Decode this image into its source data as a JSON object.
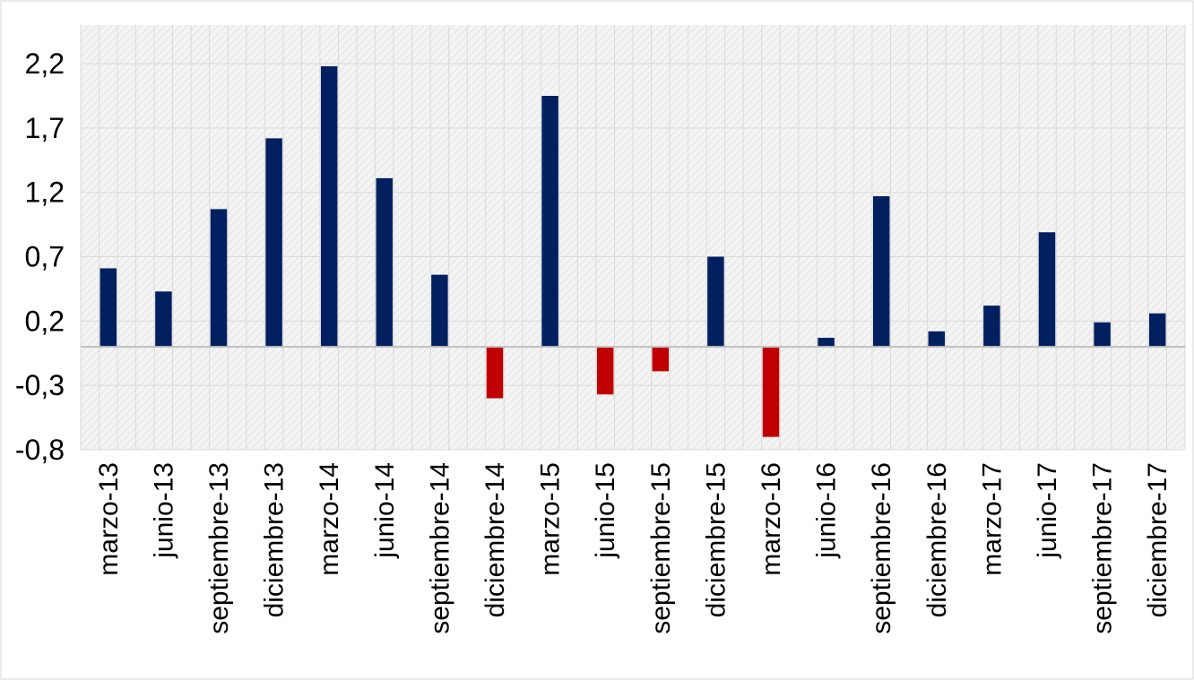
{
  "colors": {
    "positive": "#022060",
    "negative": "#c00000",
    "grid": "#d9d9d9",
    "plot_background": "#f2f2f2"
  },
  "chart_data": {
    "type": "bar",
    "title": "",
    "xlabel": "",
    "ylabel": "",
    "ylim": [
      -0.8,
      2.5
    ],
    "yticks": [
      -0.8,
      -0.3,
      0.2,
      0.7,
      1.2,
      1.7,
      2.2
    ],
    "ytick_labels": [
      "-0,8",
      "-0,3",
      "0,2",
      "0,7",
      "1,2",
      "1,7",
      "2,2"
    ],
    "categories": [
      "marzo-13",
      "junio-13",
      "septiembre-13",
      "diciembre-13",
      "marzo-14",
      "junio-14",
      "septiembre-14",
      "diciembre-14",
      "marzo-15",
      "junio-15",
      "septiembre-15",
      "diciembre-15",
      "marzo-16",
      "junio-16",
      "septiembre-16",
      "diciembre-16",
      "marzo-17",
      "junio-17",
      "septiembre-17",
      "diciembre-17"
    ],
    "values": [
      0.61,
      0.43,
      1.07,
      1.62,
      2.18,
      1.31,
      0.56,
      -0.4,
      1.95,
      -0.37,
      -0.19,
      0.7,
      -0.7,
      0.07,
      1.17,
      0.12,
      0.32,
      0.89,
      0.19,
      0.26
    ],
    "grid": true,
    "legend": "none"
  }
}
